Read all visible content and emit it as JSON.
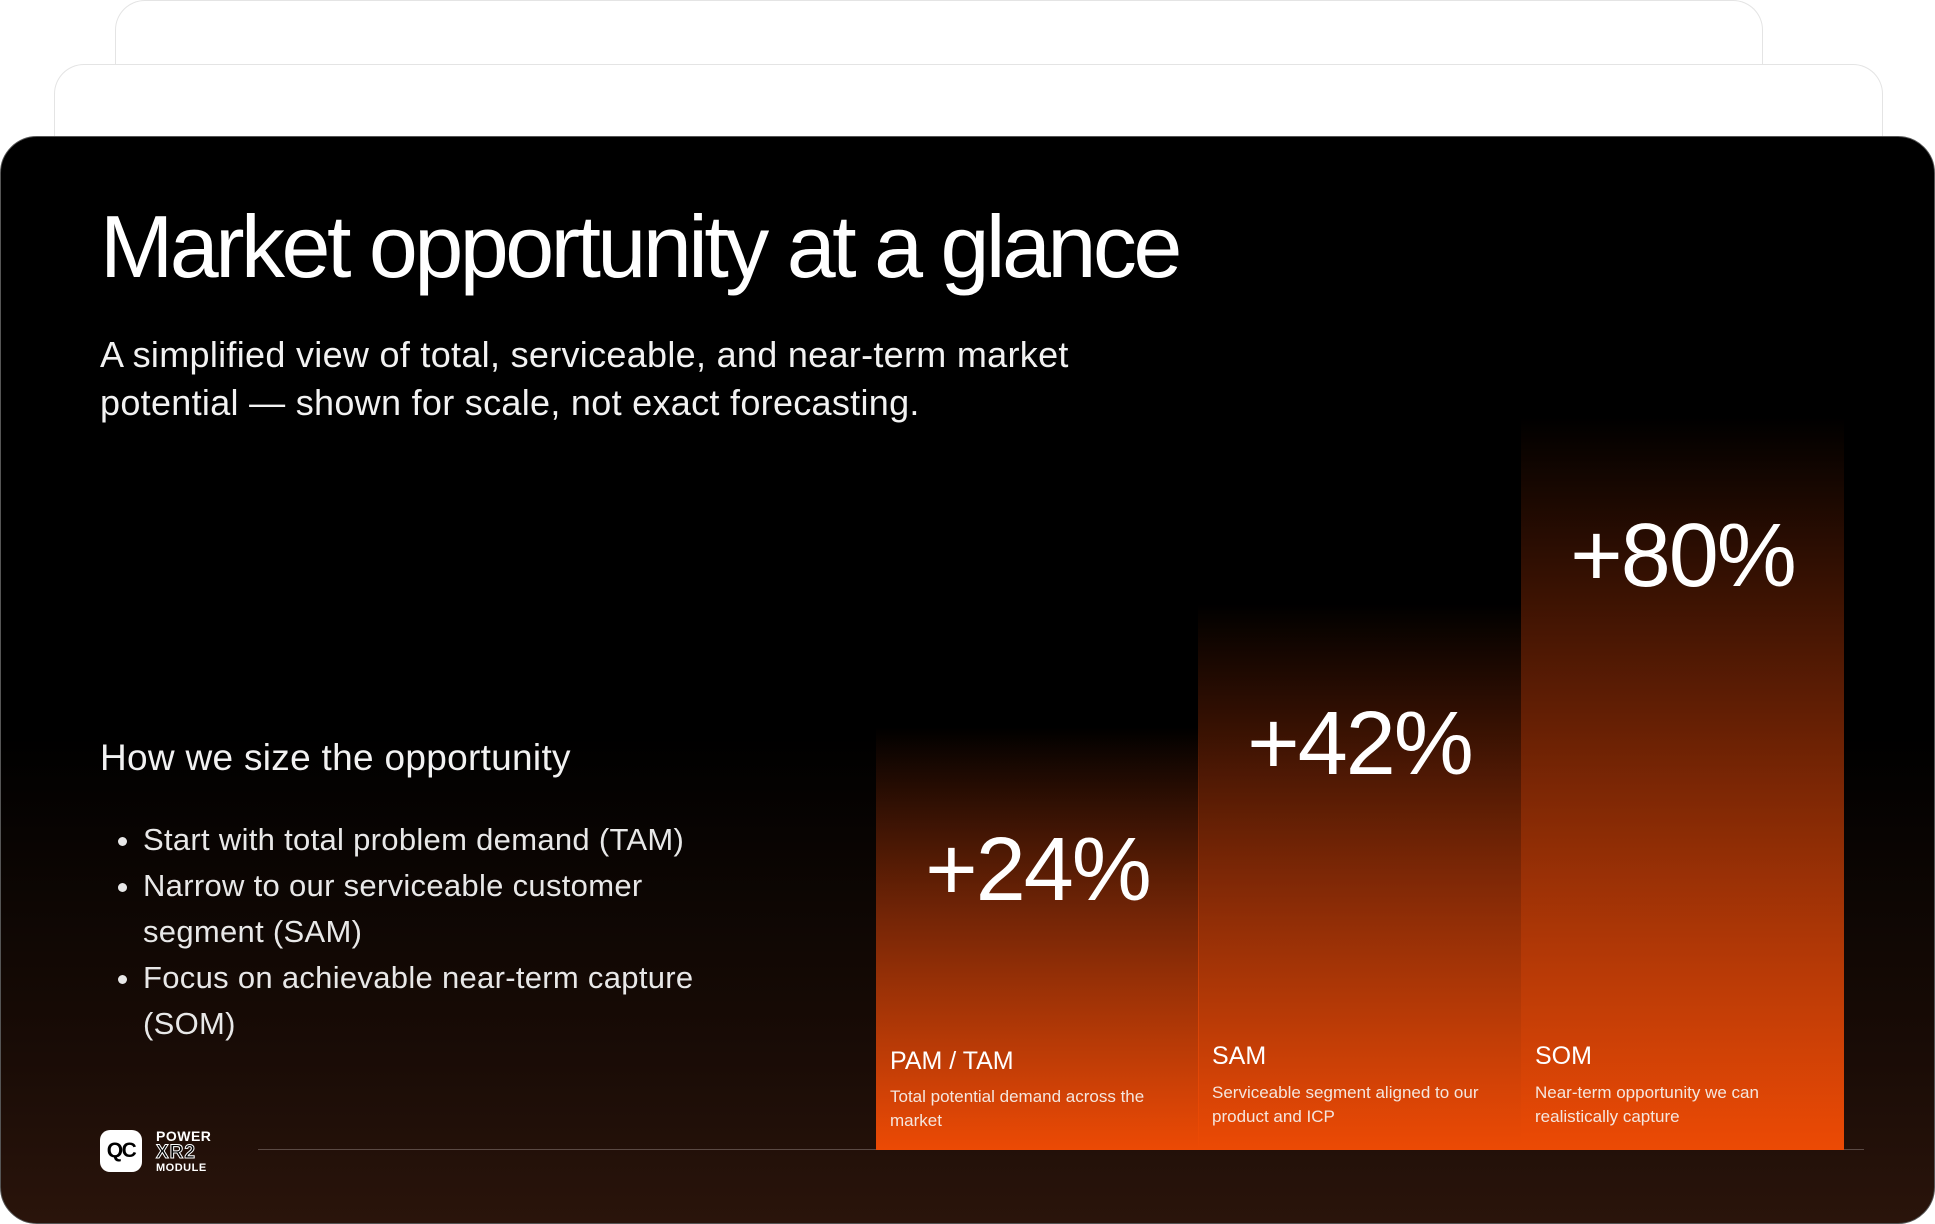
{
  "slide": {
    "title": "Market opportunity at a glance",
    "subtitle": "A simplified view of total, serviceable, and near-term market potential — shown for scale, not exact forecasting.",
    "method": {
      "heading": "How we size the opportunity",
      "bullets": [
        "Start with total problem demand (TAM)",
        "Narrow to our serviceable customer segment (SAM)",
        "Focus on achievable near-term capture (SOM)"
      ]
    },
    "columns": [
      {
        "value": "+24%",
        "name": "PAM / TAM",
        "description": "Total potential demand across the market"
      },
      {
        "value": "+42%",
        "name": "SAM",
        "description": "Serviceable segment aligned to our product and ICP"
      },
      {
        "value": "+80%",
        "name": "SOM",
        "description": "Near-term opportunity we can realistically capture"
      }
    ],
    "logo": {
      "mark": "QC",
      "line1": "POWER",
      "line2": "XR2",
      "line3": "MODULE"
    }
  }
}
